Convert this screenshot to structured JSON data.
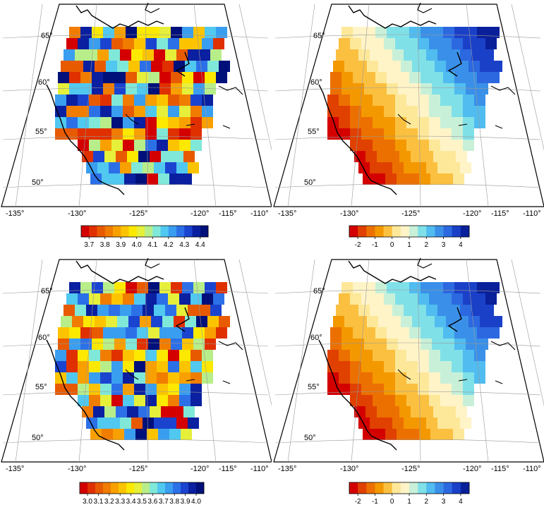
{
  "panels": [
    {
      "id": "top-left",
      "lat_labels": [
        "65°",
        "60°",
        "55°",
        "50°"
      ],
      "lon_labels": [
        "-135°",
        "-130°",
        "-125°",
        "-120°",
        "-115°",
        "-110°"
      ],
      "colorbar": {
        "labels": [
          "3.7",
          "3.8",
          "3.9",
          "4.0",
          "4.1",
          "4.2",
          "4.3",
          "4.4"
        ],
        "colors": [
          "#d40000",
          "#e03000",
          "#e85a00",
          "#f07c00",
          "#f8a000",
          "#fcc400",
          "#fde800",
          "#e6ef3a",
          "#b8ee8a",
          "#80e8d8",
          "#50c8f0",
          "#3a9ef0",
          "#2c70e8",
          "#1a44d0",
          "#0a20a0",
          "#00107a"
        ]
      }
    },
    {
      "id": "top-right",
      "lat_labels": [
        "65°",
        "60°",
        "55°",
        "50°"
      ],
      "lon_labels": [
        "-135°",
        "-130°",
        "-125°",
        "-120°",
        "-115°",
        "-110°"
      ],
      "colorbar": {
        "labels": [
          "-2",
          "-1",
          "0",
          "1",
          "2",
          "3",
          "4"
        ],
        "colors": [
          "#d40000",
          "#e04000",
          "#ec7000",
          "#f49800",
          "#fbc040",
          "#fde89a",
          "#fff4c8",
          "#c8f0d8",
          "#80e0e8",
          "#50bcf0",
          "#3a90e8",
          "#2c68e0",
          "#1a40c8",
          "#0a209a"
        ]
      }
    },
    {
      "id": "bottom-left",
      "lat_labels": [
        "65°",
        "60°",
        "55°",
        "50°"
      ],
      "lon_labels": [
        "-135°",
        "-130°",
        "-125°",
        "-120°",
        "-115°",
        "-110°"
      ],
      "colorbar": {
        "labels": [
          "3.0",
          "3.1",
          "3.2",
          "3.3",
          "3.4",
          "3.5",
          "3.6",
          "3.7",
          "3.8",
          "3.9",
          "4.0"
        ],
        "colors": [
          "#d40000",
          "#e03000",
          "#e85a00",
          "#f07c00",
          "#f8a000",
          "#fcc400",
          "#fde800",
          "#e6ef3a",
          "#b8ee8a",
          "#80e8d8",
          "#50c8f0",
          "#3a9ef0",
          "#2c70e8",
          "#1a44d0",
          "#0a20a0",
          "#00107a"
        ]
      }
    },
    {
      "id": "bottom-right",
      "lat_labels": [
        "65°",
        "60°",
        "55°",
        "50°"
      ],
      "lon_labels": [
        "-135°",
        "-130°",
        "-125°",
        "-120°",
        "-115°",
        "-110°"
      ],
      "colorbar": {
        "labels": [
          "-2",
          "-1",
          "0",
          "1",
          "2",
          "3",
          "4"
        ],
        "colors": [
          "#d40000",
          "#e04000",
          "#ec7000",
          "#f49800",
          "#fbc040",
          "#fde89a",
          "#fff4c8",
          "#c8f0d8",
          "#80e0e8",
          "#50bcf0",
          "#3a90e8",
          "#2c68e0",
          "#1a40c8",
          "#0a209a"
        ]
      }
    }
  ]
}
